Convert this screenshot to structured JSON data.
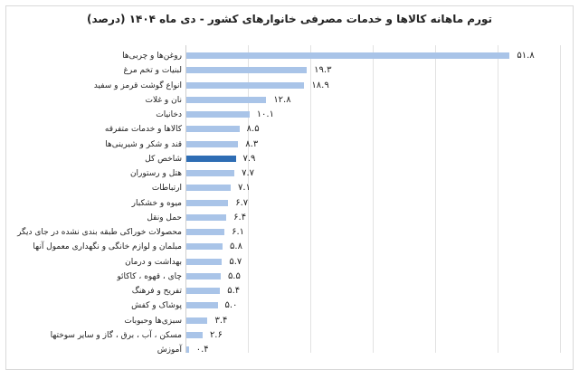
{
  "chart_data": {
    "type": "bar",
    "orientation": "horizontal",
    "title": "تورم ماهانه کالاها و خدمات مصرفی خانوارهای کشور - دی ماه ۱۴۰۴ (درصد)",
    "xlabel": "",
    "ylabel": "",
    "xlim": [
      0,
      60
    ],
    "grid": true,
    "gridlines_x": [
      10,
      20,
      30,
      40,
      50,
      60
    ],
    "legend": "none",
    "colors": {
      "bar": "#a9c4e8",
      "highlight": "#2e6db4"
    },
    "categories": [
      "روغن‌ها و چربی‌ها",
      "لبنیات و تخم مرغ",
      "انواع گوشت قرمز و سفید",
      "نان و غلات",
      "دخانیات",
      "کالاها و خدمات متفرقه",
      "قند و شکر و شیرینی‌ها",
      "شاخص کل",
      "هتل و رستوران",
      "ارتباطات",
      "میوه و خشکبار",
      "حمل ونقل",
      "محصولات خوراکی طبقه بندی نشده در جای دیگر",
      "مبلمان و لوازم خانگی و نگهداری معمول آنها",
      "بهداشت و درمان",
      "چای ، قهوه ، کاکائو",
      "تفریح و فرهنگ",
      "پوشاک و کفش",
      "سبزی‌ها وحبوبات",
      "مسکن ، آب ، برق ، گاز و سایر سوختها",
      "آموزش"
    ],
    "values": [
      51.8,
      19.3,
      18.9,
      12.8,
      10.1,
      8.5,
      8.3,
      7.9,
      7.7,
      7.1,
      6.7,
      6.4,
      6.1,
      5.8,
      5.7,
      5.5,
      5.4,
      5.0,
      3.4,
      2.6,
      0.4
    ],
    "value_labels": [
      "۵۱.۸",
      "۱۹.۳",
      "۱۸.۹",
      "۱۲.۸",
      "۱۰.۱",
      "۸.۵",
      "۸.۳",
      "۷.۹",
      "۷.۷",
      "۷.۱",
      "۶.۷",
      "۶.۴",
      "۶.۱",
      "۵.۸",
      "۵.۷",
      "۵.۵",
      "۵.۴",
      "۵.۰",
      "۳.۴",
      "۲.۶",
      "۰.۴"
    ],
    "highlight_index": 7
  }
}
